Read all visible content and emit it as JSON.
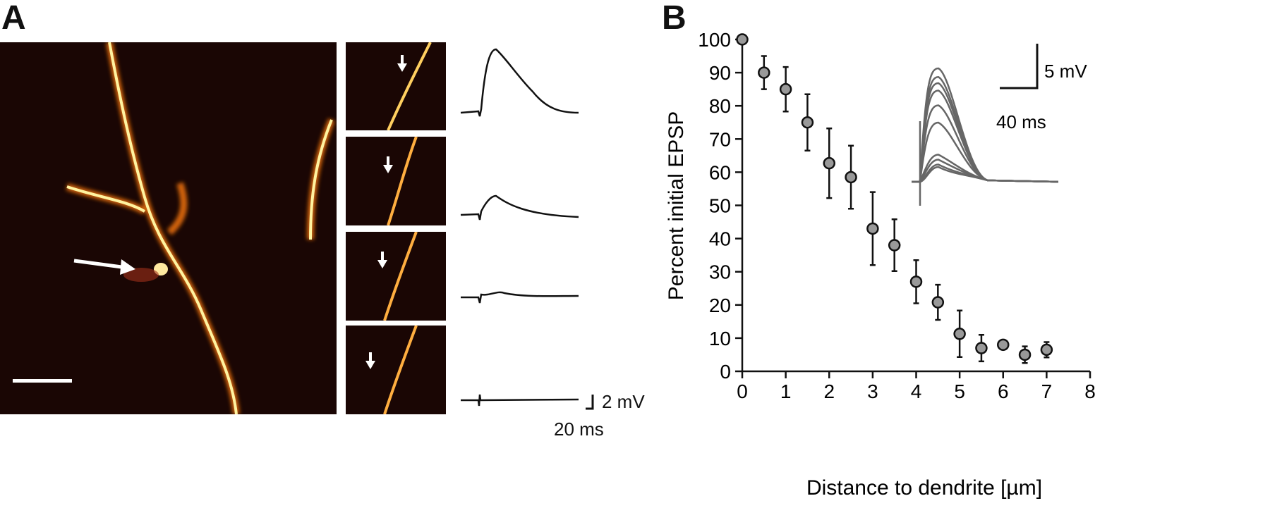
{
  "panel_a": {
    "letter": "A",
    "trace_scale": {
      "voltage": "2 mV",
      "time": "20 ms"
    }
  },
  "panel_b": {
    "letter": "B",
    "inset_scale": {
      "voltage": "5 mV",
      "time": "40 ms"
    }
  },
  "chart_data": {
    "type": "scatter",
    "title": "",
    "xlabel": "Distance to dendrite [µm]",
    "ylabel": "Percent initial EPSP",
    "xlim": [
      0,
      8
    ],
    "ylim": [
      0,
      100
    ],
    "xticks": [
      "0",
      "1",
      "2",
      "3",
      "4",
      "5",
      "6",
      "7",
      "8"
    ],
    "yticks": [
      "0",
      "10",
      "20",
      "30",
      "40",
      "50",
      "60",
      "70",
      "80",
      "90",
      "100"
    ],
    "grid": false,
    "marker_color": "#999999",
    "points": [
      {
        "x": 0,
        "y": 100,
        "err": 0
      },
      {
        "x": 0.5,
        "y": 90,
        "err": 5
      },
      {
        "x": 1,
        "y": 85,
        "err": 6.7
      },
      {
        "x": 1.5,
        "y": 75,
        "err": 8.5
      },
      {
        "x": 2,
        "y": 62.7,
        "err": 10.5
      },
      {
        "x": 2.5,
        "y": 58.5,
        "err": 9.5
      },
      {
        "x": 3,
        "y": 43,
        "err": 11
      },
      {
        "x": 3.5,
        "y": 38,
        "err": 7.8
      },
      {
        "x": 4,
        "y": 27,
        "err": 6.5
      },
      {
        "x": 4.5,
        "y": 20.8,
        "err": 5.3
      },
      {
        "x": 5,
        "y": 11.3,
        "err": 7
      },
      {
        "x": 5.5,
        "y": 7,
        "err": 4
      },
      {
        "x": 6,
        "y": 8,
        "err": 0.5
      },
      {
        "x": 6.5,
        "y": 5,
        "err": 2.5
      },
      {
        "x": 7,
        "y": 6.5,
        "err": 2.3
      }
    ]
  }
}
